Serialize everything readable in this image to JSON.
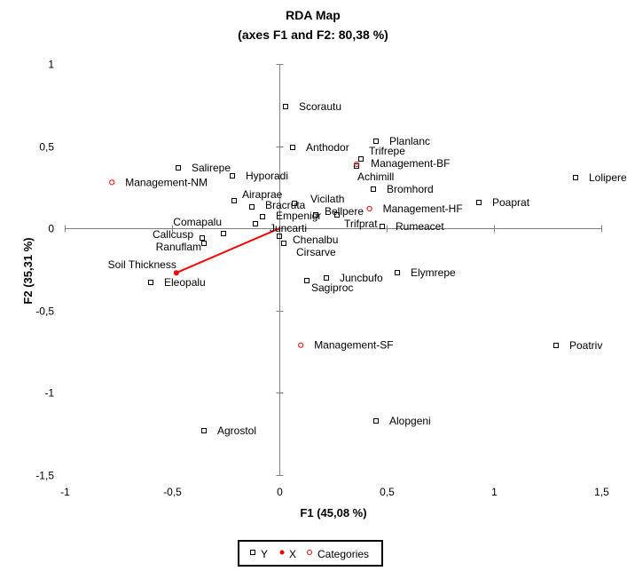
{
  "chart_data": {
    "type": "scatter",
    "title": "RDA Map",
    "subtitle": "(axes F1 and F2: 80,38 %)",
    "xlabel": "F1 (45,08 %)",
    "ylabel": "F2 (35,31 %)",
    "xlim": [
      -1,
      1.5
    ],
    "ylim": [
      -1.5,
      1
    ],
    "xticks": [
      {
        "v": -1,
        "label": "-1"
      },
      {
        "v": -0.5,
        "label": "-0,5"
      },
      {
        "v": 0,
        "label": "0"
      },
      {
        "v": 0.5,
        "label": "0,5"
      },
      {
        "v": 1,
        "label": "1"
      },
      {
        "v": 1.5,
        "label": "1,5"
      }
    ],
    "yticks": [
      {
        "v": 1,
        "label": "1"
      },
      {
        "v": 0.5,
        "label": "0,5"
      },
      {
        "v": 0,
        "label": "0"
      },
      {
        "v": -0.5,
        "label": "-0,5"
      },
      {
        "v": -1,
        "label": "-1"
      },
      {
        "v": -1.5,
        "label": "-1,5"
      }
    ],
    "grid": false,
    "legend_position": "bottom",
    "legend": [
      {
        "key": "Y",
        "label": "Y"
      },
      {
        "key": "X",
        "label": "X"
      },
      {
        "key": "C",
        "label": "Categories"
      }
    ],
    "colors": {
      "Y": "#000000",
      "X": "#ff0000",
      "C": "#ff0000",
      "axis": "#808080"
    },
    "series": {
      "Y": [
        {
          "name": "Scorautu",
          "x": 0.03,
          "y": 0.74
        },
        {
          "name": "Anthodor",
          "x": 0.06,
          "y": 0.49
        },
        {
          "name": "Planlanc",
          "x": 0.45,
          "y": 0.53
        },
        {
          "name": "Trifrepe",
          "x": 0.38,
          "y": 0.42
        },
        {
          "name": "Achimill",
          "x": 0.36,
          "y": 0.38
        },
        {
          "name": "Bromhord",
          "x": 0.44,
          "y": 0.24
        },
        {
          "name": "Salirepe",
          "x": -0.47,
          "y": 0.37
        },
        {
          "name": "Hyporadi",
          "x": -0.22,
          "y": 0.32
        },
        {
          "name": "Lolipere",
          "x": 1.38,
          "y": 0.31
        },
        {
          "name": "Airaprae",
          "x": -0.21,
          "y": 0.17
        },
        {
          "name": "Bracruta",
          "x": -0.13,
          "y": 0.13
        },
        {
          "name": "Vicilath",
          "x": 0.07,
          "y": 0.15
        },
        {
          "name": "Poaprat",
          "x": 0.93,
          "y": 0.16
        },
        {
          "name": "Empenigr",
          "x": -0.08,
          "y": 0.07
        },
        {
          "name": "Bellpere",
          "x": 0.17,
          "y": 0.08
        },
        {
          "name": "Trifprat",
          "x": 0.27,
          "y": 0.08
        },
        {
          "name": "Juncarti",
          "x": -0.11,
          "y": 0.03
        },
        {
          "name": "Rumeacet",
          "x": 0.48,
          "y": 0.01
        },
        {
          "name": "Comapalu",
          "x": -0.26,
          "y": -0.03
        },
        {
          "name": "Callcusp",
          "x": -0.36,
          "y": -0.06
        },
        {
          "name": "Ranuflam",
          "x": -0.35,
          "y": -0.09
        },
        {
          "name": "Chenalbu",
          "x": 0.0,
          "y": -0.05
        },
        {
          "name": "Cirsarve",
          "x": 0.02,
          "y": -0.09
        },
        {
          "name": "Eleopalu",
          "x": -0.6,
          "y": -0.33
        },
        {
          "name": "Sagiproc",
          "x": 0.13,
          "y": -0.32
        },
        {
          "name": "Juncbufo",
          "x": 0.22,
          "y": -0.3
        },
        {
          "name": "Elymrepe",
          "x": 0.55,
          "y": -0.27
        },
        {
          "name": "Poatriv",
          "x": 1.29,
          "y": -0.71
        },
        {
          "name": "Agrostol",
          "x": -0.35,
          "y": -1.23
        },
        {
          "name": "Alopgeni",
          "x": 0.45,
          "y": -1.17
        }
      ],
      "X": [
        {
          "name": "Soil Thickness",
          "x": -0.48,
          "y": -0.27
        }
      ],
      "C": [
        {
          "name": "Management-NM",
          "x": -0.78,
          "y": 0.28
        },
        {
          "name": "Management-BF",
          "x": 0.36,
          "y": 0.39
        },
        {
          "name": "Management-HF",
          "x": 0.42,
          "y": 0.12
        },
        {
          "name": "Management-SF",
          "x": 0.1,
          "y": -0.71
        }
      ]
    }
  }
}
